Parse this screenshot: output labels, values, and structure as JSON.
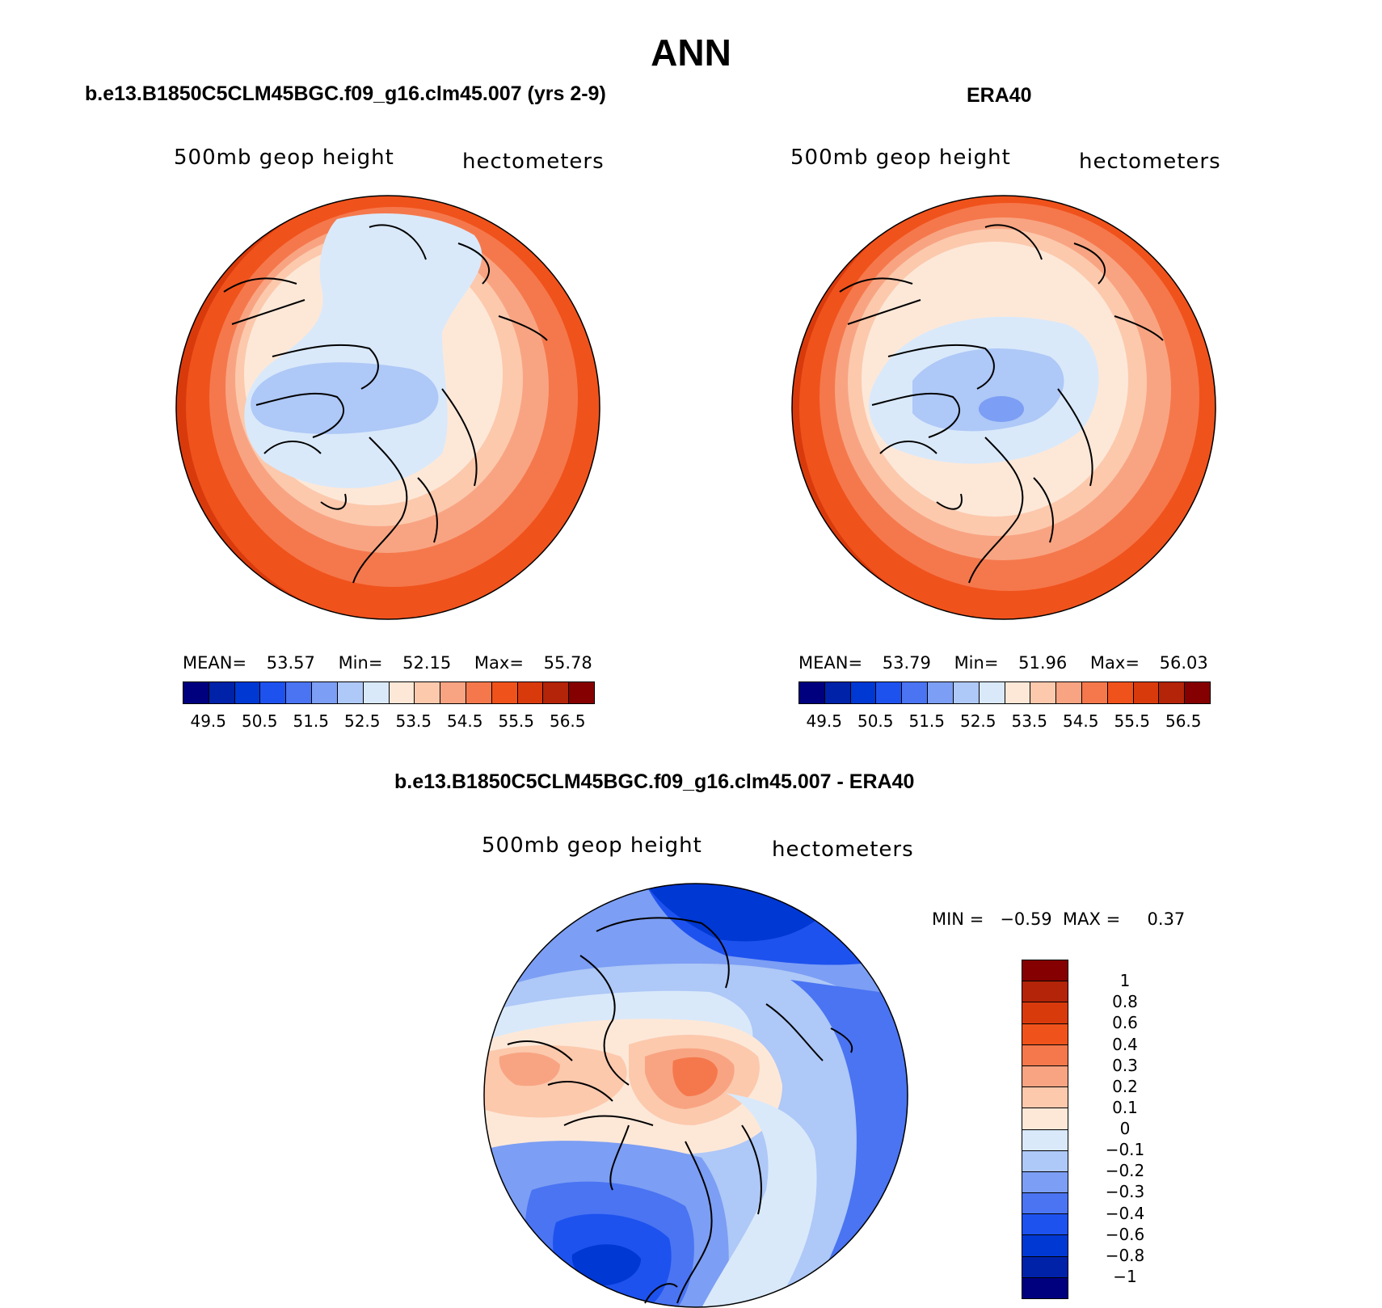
{
  "figure": {
    "main_title": "ANN",
    "panel_left": {
      "title": "b.e13.B1850C5CLM45BGC.f09_g16.clm45.007 (yrs 2-9)",
      "variable": "500mb geop height",
      "units": "hectometers",
      "stats": {
        "mean_label": "MEAN=",
        "mean": "53.57",
        "min_label": "Min=",
        "min": "52.15",
        "max_label": "Max=",
        "max": "55.78"
      }
    },
    "panel_right": {
      "title": "ERA40",
      "variable": "500mb geop height",
      "units": "hectometers",
      "stats": {
        "mean_label": "MEAN=",
        "mean": "53.79",
        "min_label": "Min=",
        "min": "51.96",
        "max_label": "Max=",
        "max": "56.03"
      }
    },
    "panel_diff": {
      "title": "b.e13.B1850C5CLM45BGC.f09_g16.clm45.007 - ERA40",
      "variable": "500mb geop height",
      "units": "hectometers",
      "stats_text": "MIN =   −0.59  MAX =     0.37"
    },
    "colorbar_main": {
      "colors": [
        "#00007f",
        "#0022a8",
        "#0038d4",
        "#1e52ef",
        "#4a74f2",
        "#7c9ef4",
        "#aec8f7",
        "#d9e9fa",
        "#fde8d8",
        "#fcc9ad",
        "#f8a482",
        "#f5784c",
        "#f0521c",
        "#d93a0c",
        "#b32408",
        "#850000"
      ],
      "tick_labels": [
        "49.5",
        "50.5",
        "51.5",
        "52.5",
        "53.5",
        "54.5",
        "55.5",
        "56.5"
      ]
    },
    "colorbar_diff": {
      "colors": [
        "#850000",
        "#b32408",
        "#d93a0c",
        "#f0521c",
        "#f5784c",
        "#f8a482",
        "#fcc9ad",
        "#fde8d8",
        "#d9e9fa",
        "#aec8f7",
        "#7c9ef4",
        "#4a74f2",
        "#1e52ef",
        "#0038d4",
        "#0022a8",
        "#00007f"
      ],
      "tick_labels": [
        "1",
        "0.8",
        "0.6",
        "0.4",
        "0.3",
        "0.2",
        "0.1",
        "0",
        "−0.1",
        "−0.2",
        "−0.3",
        "−0.4",
        "−0.6",
        "−0.8",
        "−1"
      ]
    }
  }
}
